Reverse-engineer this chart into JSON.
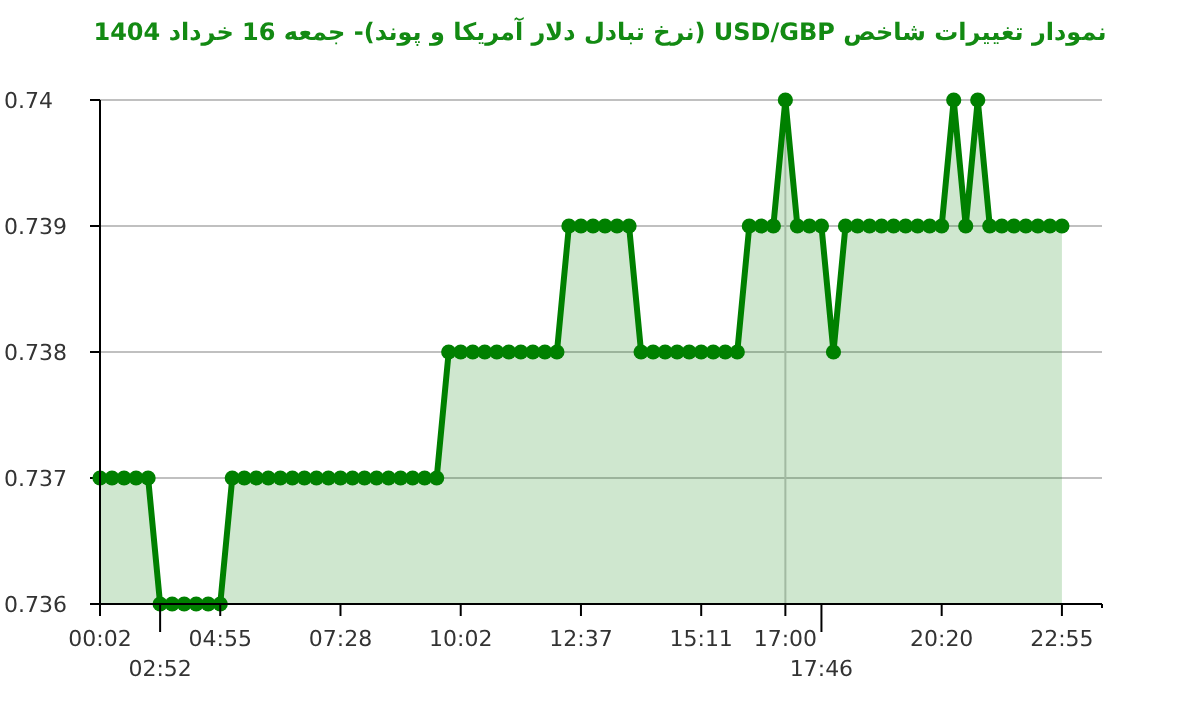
{
  "chart_data": {
    "type": "area",
    "title": "نمودار تغییرات شاخص USD/GBP (نرخ تبادل دلار آمریکا و پوند)- جمعه  16 خرداد 1404",
    "categories": [
      "00:02",
      null,
      null,
      null,
      null,
      "02:52",
      null,
      null,
      null,
      null,
      "04:55",
      null,
      null,
      null,
      null,
      null,
      null,
      null,
      null,
      null,
      "07:28",
      null,
      null,
      null,
      null,
      null,
      null,
      null,
      null,
      null,
      "10:02",
      null,
      null,
      null,
      null,
      null,
      null,
      null,
      null,
      null,
      "12:37",
      null,
      null,
      null,
      null,
      null,
      null,
      null,
      null,
      null,
      "15:11",
      null,
      null,
      null,
      null,
      null,
      null,
      "17:00",
      null,
      null,
      "17:46",
      null,
      null,
      null,
      null,
      null,
      null,
      null,
      null,
      null,
      "20:20",
      null,
      null,
      null,
      null,
      null,
      null,
      null,
      null,
      null,
      "22:55"
    ],
    "series": [
      {
        "color": "#008000",
        "values": [
          0.737,
          0.737,
          0.737,
          0.737,
          0.737,
          0.736,
          0.736,
          0.736,
          0.736,
          0.736,
          0.736,
          0.737,
          0.737,
          0.737,
          0.737,
          0.737,
          0.737,
          0.737,
          0.737,
          0.737,
          0.737,
          0.737,
          0.737,
          0.737,
          0.737,
          0.737,
          0.737,
          0.737,
          0.737,
          0.738,
          0.738,
          0.738,
          0.738,
          0.738,
          0.738,
          0.738,
          0.738,
          0.738,
          0.738,
          0.739,
          0.739,
          0.739,
          0.739,
          0.739,
          0.739,
          0.738,
          0.738,
          0.738,
          0.738,
          0.738,
          0.738,
          0.738,
          0.738,
          0.738,
          0.739,
          0.739,
          0.739,
          0.74,
          0.739,
          0.739,
          0.739,
          0.738,
          0.739,
          0.739,
          0.739,
          0.739,
          0.739,
          0.739,
          0.739,
          0.739,
          0.739,
          0.74,
          0.739,
          0.74,
          0.739,
          0.739,
          0.739,
          0.739,
          0.739,
          0.739,
          0.739
        ]
      }
    ],
    "ylim": [
      0.736,
      0.74
    ],
    "yticks": [
      0.736,
      0.737,
      0.738,
      0.739,
      0.74
    ],
    "grid": "y",
    "marker": "circle",
    "line_style": "solid",
    "ref_lines": [
      {
        "axis": "x",
        "value": "17:00",
        "color": "#c8c8c8"
      }
    ]
  }
}
